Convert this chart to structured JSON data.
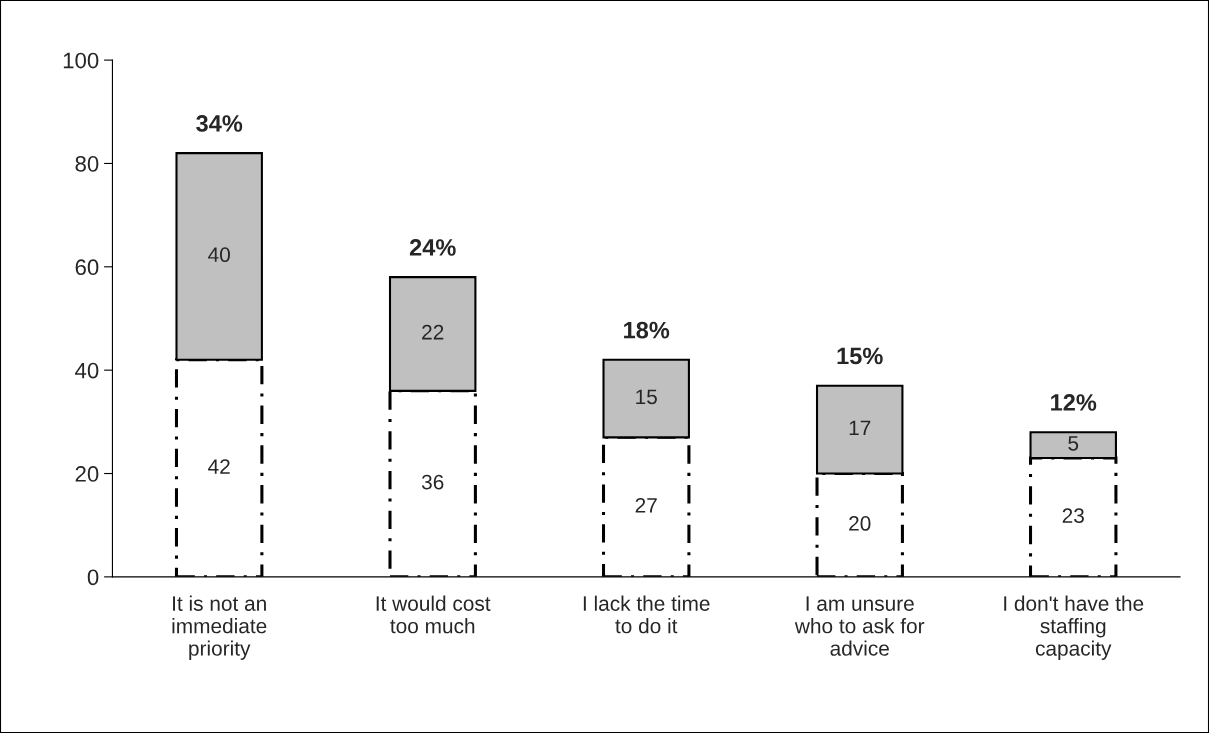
{
  "chart_data": {
    "type": "bar",
    "stacked": true,
    "categories": [
      "It is not an\nimmediate\npriority",
      "It would cost\ntoo much",
      "I lack the time\nto do it",
      "I am unsure\nwho to ask for\nadvice",
      "I don't have the\nstaffing\ncapacity"
    ],
    "series": [
      {
        "color": "#ffffff",
        "line_style": "dashed",
        "values": [
          42,
          36,
          27,
          20,
          23
        ]
      },
      {
        "color": "#c0c0c0",
        "line_style": "solid",
        "values": [
          40,
          22,
          15,
          17,
          5
        ]
      }
    ],
    "ylim": [
      0,
      100
    ],
    "yticks": [
      0,
      20,
      40,
      60,
      80,
      100
    ],
    "data_labels": true,
    "grid": false,
    "legend": false,
    "annotations": [
      {
        "text": "34%",
        "x": "It is not an\nimmediate\npriority",
        "y": 82
      },
      {
        "text": "24%",
        "x": "It would cost\ntoo much",
        "y": 58
      },
      {
        "text": "18%",
        "x": "I lack the time\nto do it",
        "y": 42
      },
      {
        "text": "15%",
        "x": "I am unsure\nwho to ask for\nadvice",
        "y": 37
      },
      {
        "text": "12%",
        "x": "I don't have the\nstaffing\ncapacity",
        "y": 28
      }
    ]
  }
}
